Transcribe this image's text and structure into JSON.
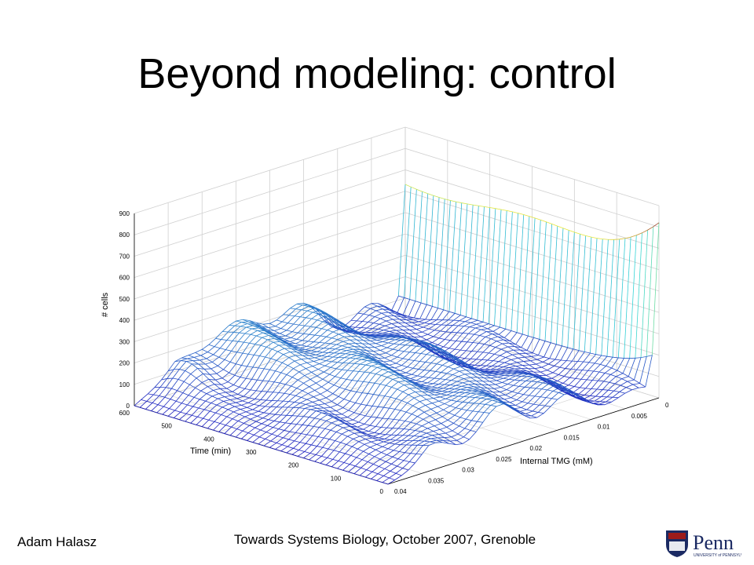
{
  "slide": {
    "title": "Beyond modeling: control",
    "footer_author": "Adam Halasz",
    "footer_venue": "Towards Systems Biology, October 2007, Grenoble",
    "logo_text": "Penn"
  },
  "colors": {
    "mesh_low": "#1f1fbf",
    "mesh_mid": "#35d6d6",
    "mesh_high_yellow": "#e8e83a",
    "mesh_peak": "#9c3a2a",
    "grid": "#d0d0d0",
    "logo_red": "#9c1b1b",
    "logo_blue": "#1b2a63"
  },
  "chart_data": {
    "type": "surface",
    "title": "",
    "xlabel": "Internal TMG (mM)",
    "ylabel": "Time (min)",
    "zlabel": "# cells",
    "x_ticks": [
      "0",
      "0.005",
      "0.01",
      "0.015",
      "0.02",
      "0.025",
      "0.03",
      "0.035",
      "0.04"
    ],
    "y_ticks": [
      "0",
      "100",
      "200",
      "300",
      "400",
      "500",
      "600"
    ],
    "z_ticks": [
      "0",
      "100",
      "200",
      "300",
      "400",
      "500",
      "600",
      "700",
      "800",
      "900"
    ],
    "xlim": [
      0,
      0.04
    ],
    "ylim": [
      0,
      600
    ],
    "zlim": [
      0,
      900
    ],
    "grid": true,
    "colormap": "jet",
    "surface_notes": "Population histogram of internal TMG over time; the 0 mM bin stays near 650 cells rising to about 820 at t = 0, the remaining bins form a low ridge of roughly 100-300 cells."
  }
}
